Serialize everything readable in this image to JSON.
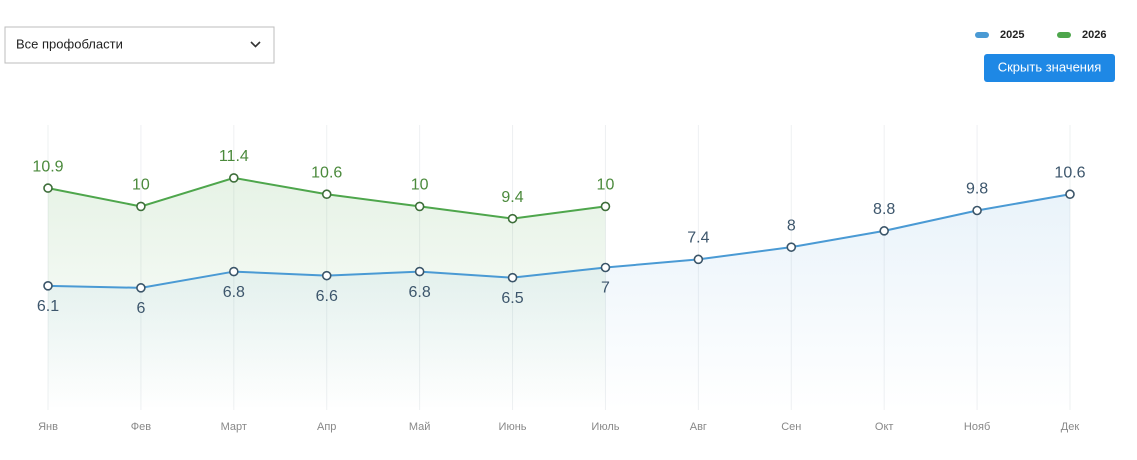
{
  "dropdown": {
    "label": "Все профобласти"
  },
  "button": {
    "label": "Скрыть значения"
  },
  "chart_data": {
    "type": "line",
    "categories": [
      "Янв",
      "Фев",
      "Март",
      "Апр",
      "Май",
      "Июнь",
      "Июль",
      "Авг",
      "Сен",
      "Окт",
      "Нояб",
      "Дек"
    ],
    "series": [
      {
        "name": "2025",
        "color": "#4a9ad4",
        "values": [
          6.1,
          6,
          6.8,
          6.6,
          6.8,
          6.5,
          7,
          7.4,
          8,
          8.8,
          9.8,
          10.6
        ]
      },
      {
        "name": "2026",
        "color": "#4ea64c",
        "values": [
          10.9,
          10,
          11.4,
          10.6,
          10,
          9.4,
          10,
          null,
          null,
          null,
          null,
          null
        ]
      }
    ],
    "ylim": [
      0,
      14
    ],
    "grid": true,
    "legend": "top-right"
  }
}
